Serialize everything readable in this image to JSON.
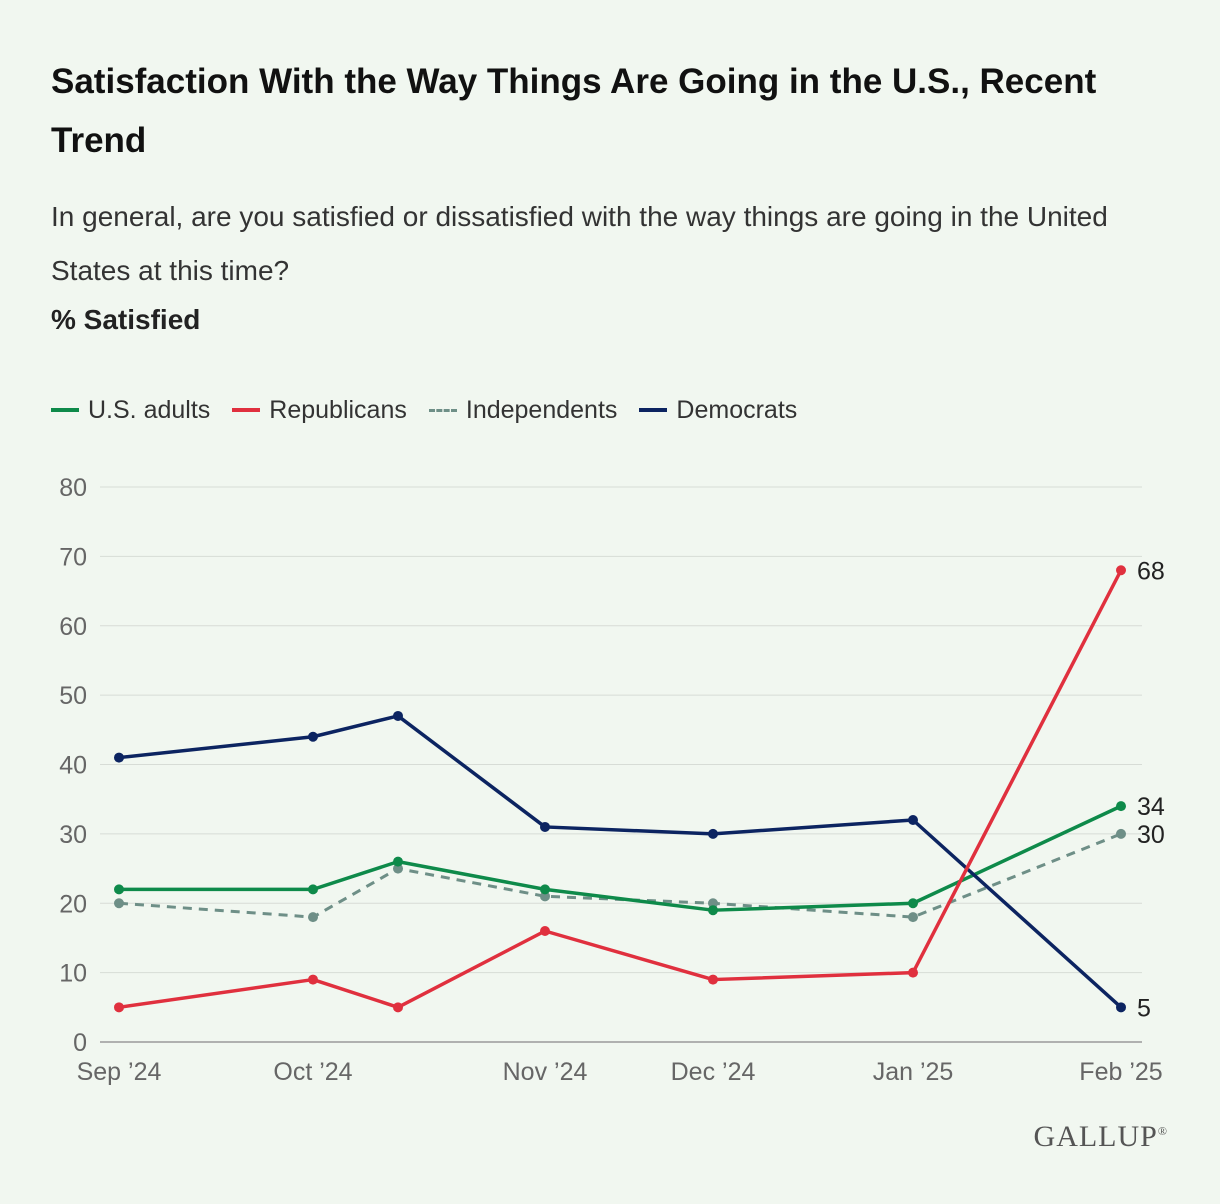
{
  "chart_data": {
    "type": "line",
    "title": "Satisfaction With the Way Things Are Going in the U.S., Recent Trend",
    "subtitle": "In general, are you satisfied or dissatisfied with the way things are going in the United States at this time?",
    "measure": "% Satisfied",
    "xlabel": "",
    "ylabel": "",
    "ylim": [
      0,
      80
    ],
    "yticks": [
      0,
      10,
      20,
      30,
      40,
      50,
      60,
      70,
      80
    ],
    "x_tick_labels": [
      "Sep ’24",
      "Oct ’24",
      "Nov ’24",
      "Dec ’24",
      "Jan ’25",
      "Feb ’25"
    ],
    "x_points": [
      "Sep 2024",
      "Oct 2024",
      "Oct 2024 (late)",
      "Nov 2024",
      "Dec 2024",
      "Jan 2025",
      "Feb 2025"
    ],
    "grid": true,
    "legend_position": "top-left",
    "series": [
      {
        "name": "U.S. adults",
        "color": "#0e8a4a",
        "dashed": false,
        "values": [
          22,
          22,
          26,
          22,
          19,
          20,
          34
        ],
        "end_label": "34"
      },
      {
        "name": "Republicans",
        "color": "#e0303e",
        "dashed": false,
        "values": [
          5,
          9,
          5,
          16,
          9,
          10,
          68
        ],
        "end_label": "68"
      },
      {
        "name": "Independents",
        "color": "#6e8f87",
        "dashed": true,
        "values": [
          20,
          18,
          25,
          21,
          20,
          18,
          30
        ],
        "end_label": "30"
      },
      {
        "name": "Democrats",
        "color": "#0c2461",
        "dashed": false,
        "values": [
          41,
          44,
          47,
          31,
          30,
          32,
          5
        ],
        "end_label": "5"
      }
    ]
  },
  "logo": {
    "text": "GALLUP",
    "mark": "®"
  }
}
